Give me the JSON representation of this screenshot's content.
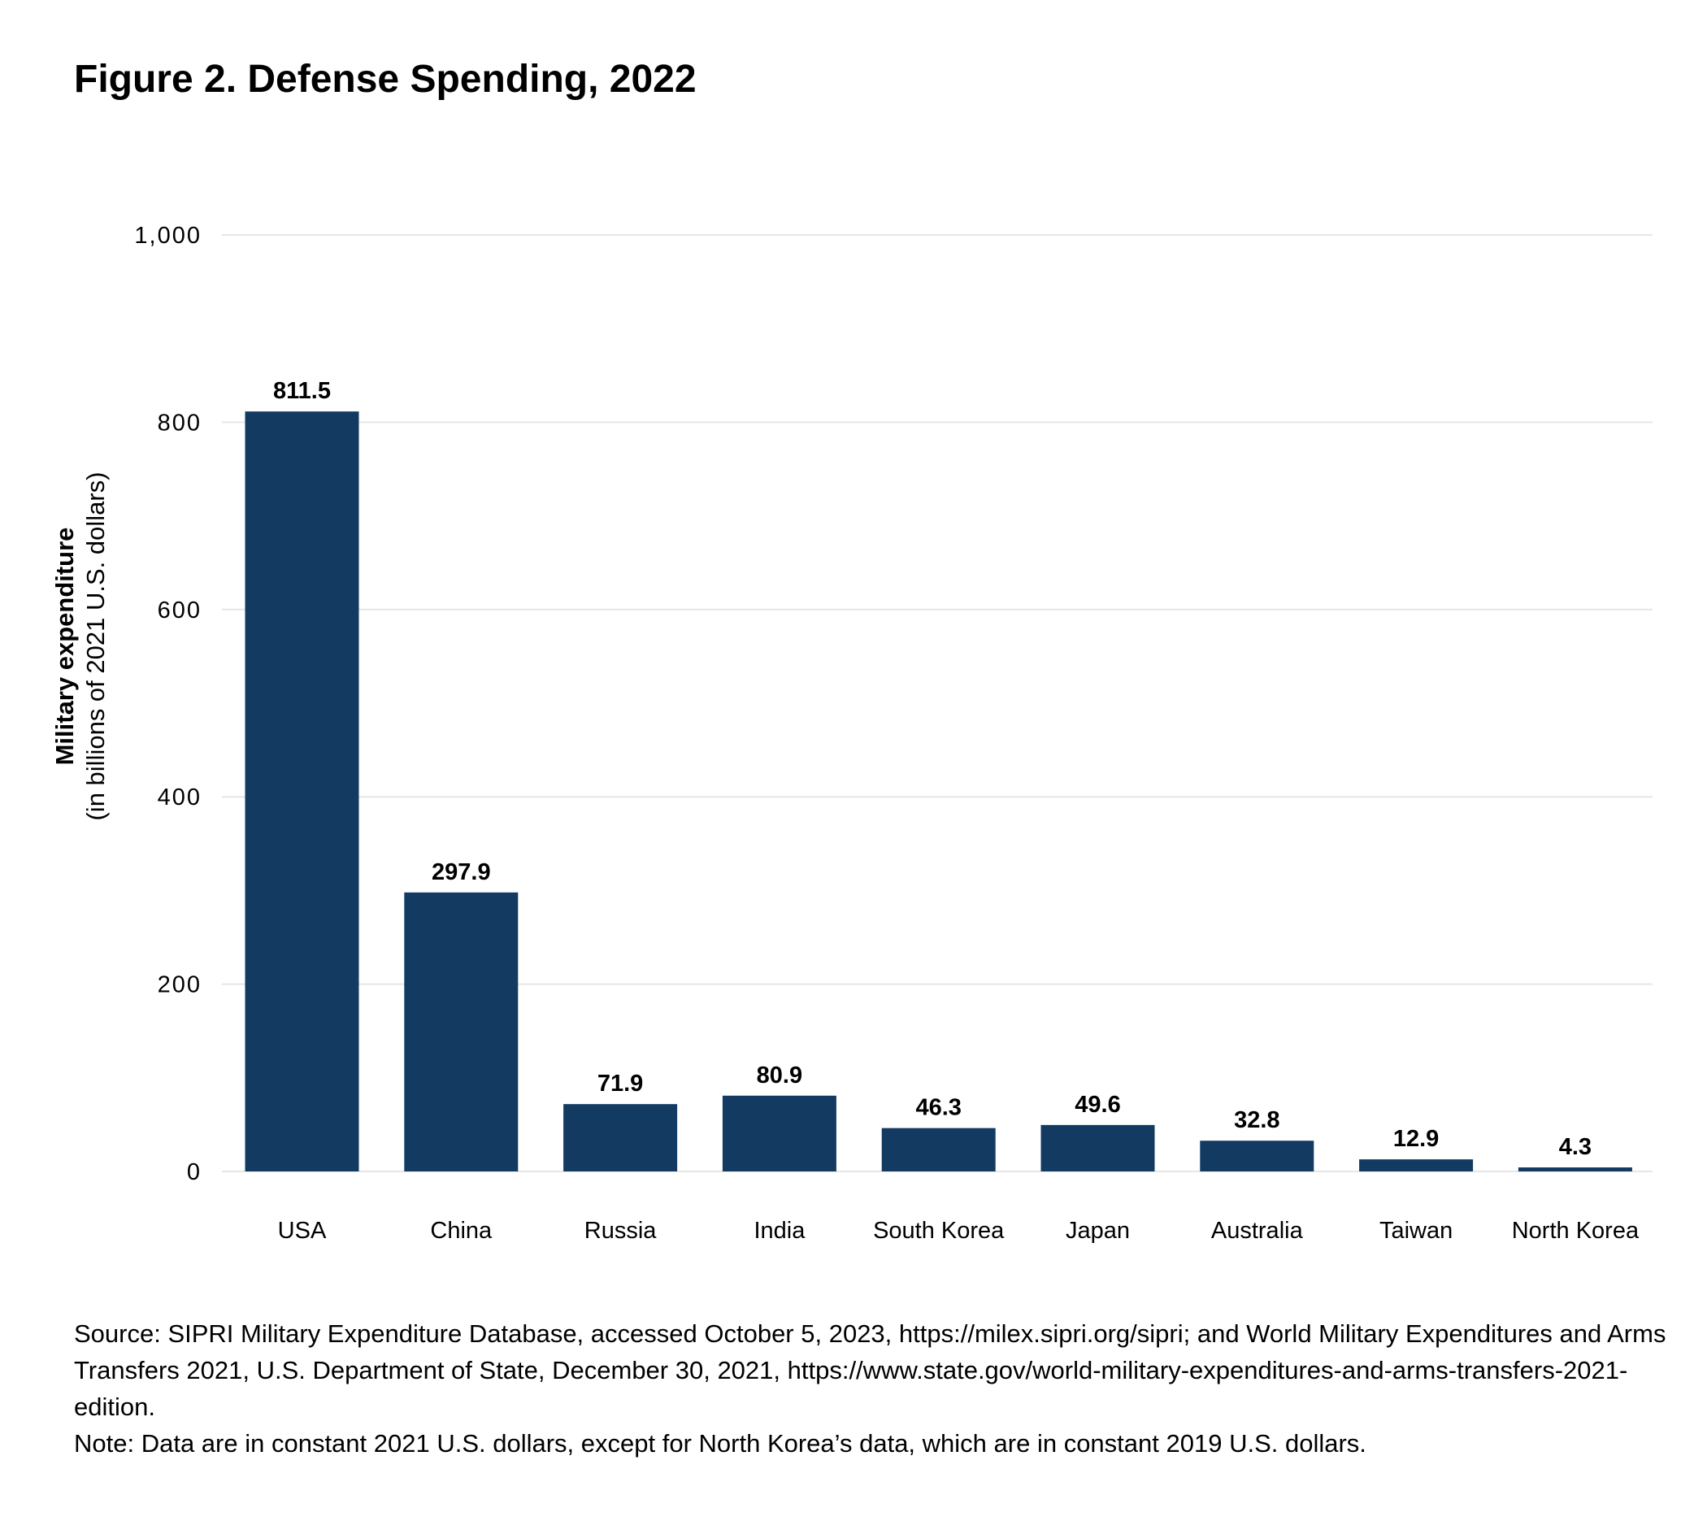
{
  "chart_data": {
    "type": "bar",
    "title": "Figure 2. Defense Spending, 2022",
    "xlabel": "",
    "ylabel": "Military expenditure",
    "ylabel_sub": "(in billions of 2021 U.S. dollars)",
    "categories": [
      "USA",
      "China",
      "Russia",
      "India",
      "South Korea",
      "Japan",
      "Australia",
      "Taiwan",
      "North Korea"
    ],
    "values": [
      811.5,
      297.9,
      71.9,
      80.9,
      46.3,
      49.6,
      32.8,
      12.9,
      4.3
    ],
    "value_labels": [
      "811.5",
      "297.9",
      "71.9",
      "80.9",
      "46.3",
      "49.6",
      "32.8",
      "12.9",
      "4.3"
    ],
    "ylim": [
      0,
      1000
    ],
    "yticks": [
      0,
      200,
      400,
      600,
      800,
      1000
    ],
    "ytick_labels": [
      "0",
      "200",
      "400",
      "600",
      "800",
      "1,000"
    ],
    "grid": true,
    "bar_color": "#133b62",
    "grid_color": "#e6e6e6"
  },
  "footer": {
    "source": "Source: SIPRI Military Expenditure Database, accessed October 5, 2023, https://milex.sipri.org/sipri; and World Military Expenditures and Arms Transfers 2021, U.S. Department of State, December 30, 2021, https://www.state.gov/world-military-expenditures-and-arms-transfers-2021-edition.",
    "note": "Note: Data are in constant 2021 U.S. dollars, except for North Korea’s data, which are in constant 2019 U.S. dollars."
  }
}
